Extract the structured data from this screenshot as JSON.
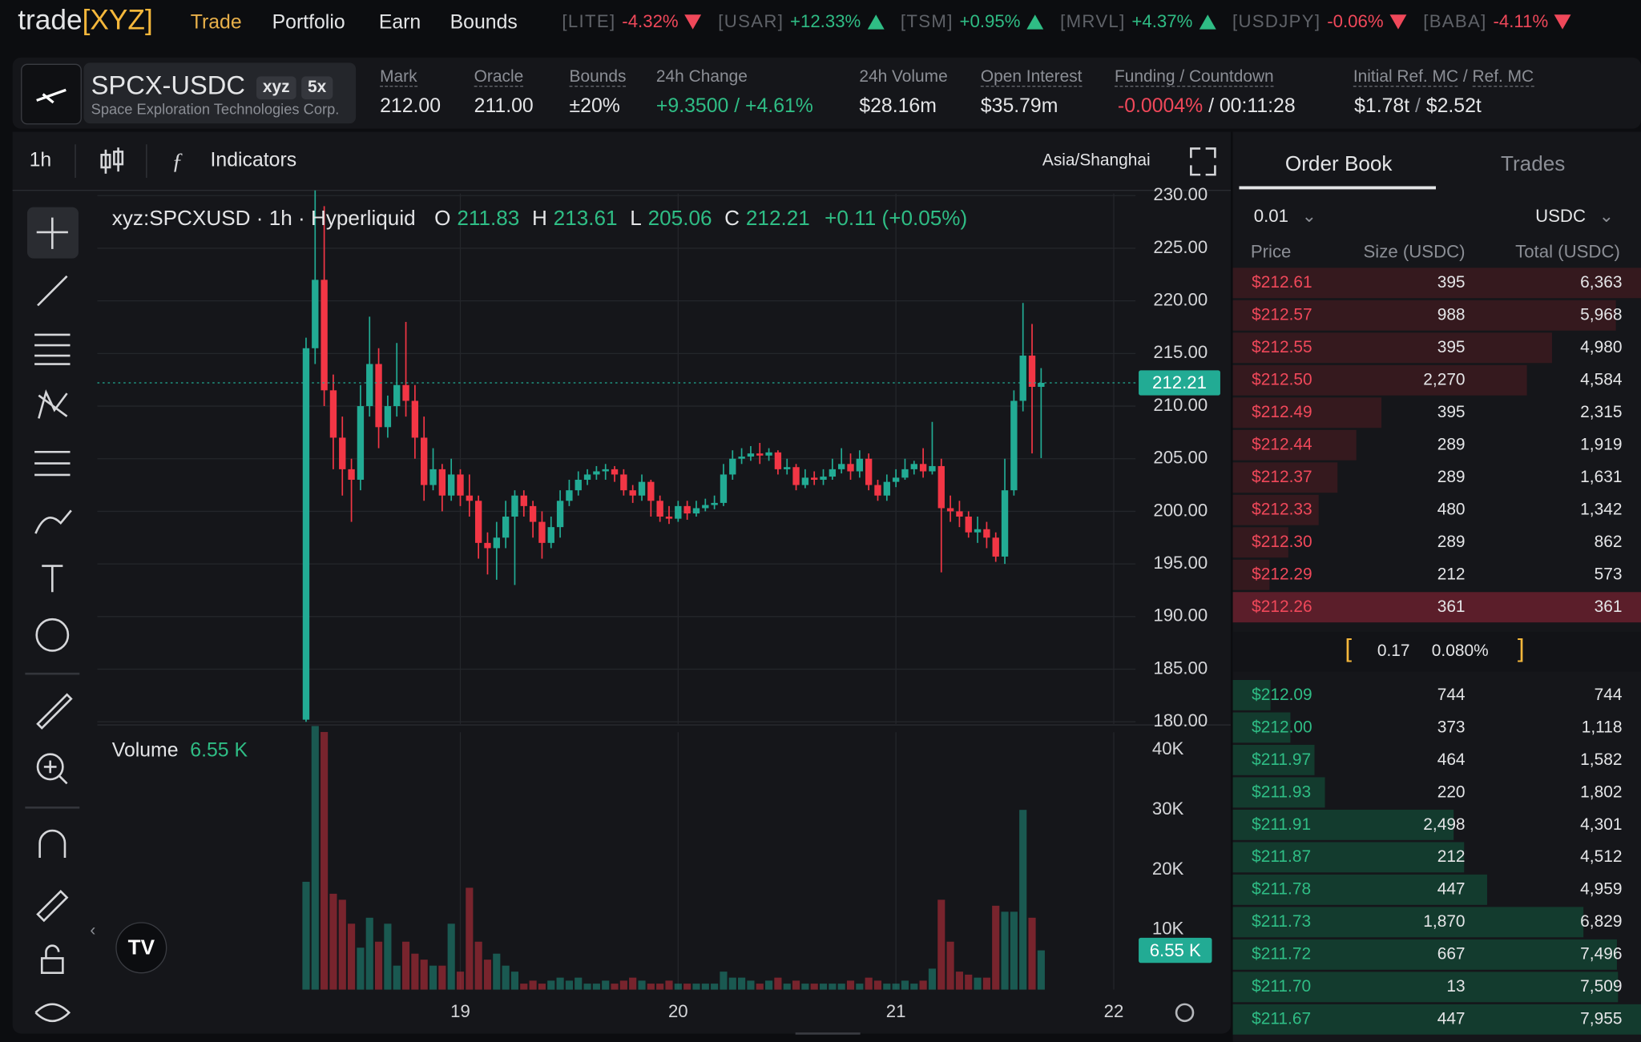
{
  "header": {
    "logo": "trade",
    "logo_accent": "[XYZ]",
    "nav": [
      "Trade",
      "Portfolio",
      "Earn",
      "Bounds"
    ],
    "tickers": [
      {
        "symbol": "[LITE]",
        "change": "-4.32%"
      },
      {
        "symbol": "[USAR]",
        "change": "+12.33%"
      },
      {
        "symbol": "[TSM]",
        "change": "+0.95%"
      },
      {
        "symbol": "[MRVL]",
        "change": "+4.37%"
      },
      {
        "symbol": "[USDJPY]",
        "change": "-0.06%"
      },
      {
        "symbol": "[BABA]",
        "change": "-4.11%"
      }
    ]
  },
  "market": {
    "pair": "SPCX-USDC",
    "tags": [
      "xyz",
      "5x"
    ],
    "company": "Space Exploration Technologies Corp.",
    "stats": [
      {
        "label": "Mark",
        "value": "212.00"
      },
      {
        "label": "Oracle",
        "value": "211.00"
      },
      {
        "label": "Bounds",
        "value": "±20%"
      },
      {
        "label": "24h Change",
        "value": "+9.3500 / +4.61%"
      },
      {
        "label": "24h Volume",
        "value": "$28.16m"
      },
      {
        "label": "Open Interest",
        "value": "$35.79m"
      }
    ],
    "funding": {
      "label": "Funding / Countdown",
      "rate": "-0.0004%",
      "separator": "/",
      "countdown": "00:11:28"
    },
    "refmc": {
      "label": "Initial Ref. MC",
      "label2": "Ref. MC",
      "separator": "/",
      "value": "$1.78t",
      "value2": "$2.52t"
    }
  },
  "toolbar": {
    "interval": "1h",
    "indicators": "Indicators",
    "timezone": "Asia/Shanghai"
  },
  "legend": {
    "symbol": "xyz:SPCXUSD · 1h · Hyperliquid",
    "ohlc_labels": [
      "O",
      "H",
      "L",
      "C"
    ],
    "change": "+0.11 (+0.05%)",
    "volume": "Volume"
  },
  "chart_data": {
    "type": "candlestick",
    "up_color": "#22ab94",
    "down_color": "#f23645",
    "grid": true,
    "open": [
      180.2,
      215.5,
      222,
      211.5,
      207,
      204,
      203,
      210,
      214,
      208,
      210,
      212,
      210.5,
      207,
      202.5,
      204,
      201.5,
      203.5,
      201.5,
      201,
      197,
      196.5,
      197.5,
      199.5,
      201.5,
      200.5,
      199,
      197,
      198.5,
      201,
      202,
      203,
      203.5,
      203.8,
      204,
      203.5,
      202,
      201.5,
      202.8,
      201,
      199.5,
      199.3,
      200.5,
      199.8,
      200.3,
      200.6,
      200.8,
      203.5,
      205,
      205.2,
      205.5,
      205.3,
      205.6,
      204,
      204.2,
      202.5,
      203.2,
      203,
      203.3,
      204,
      204.5,
      203.8,
      205,
      202.5,
      201.5,
      202.8,
      203.2,
      204,
      204.5,
      203.8,
      204.3,
      200.3,
      200,
      199.5,
      198,
      198.3,
      197.5,
      195.7,
      202,
      210.5,
      214.8,
      211.83
    ],
    "high": [
      216.5,
      230.5,
      229,
      213,
      209,
      205,
      212,
      218.5,
      215.5,
      211,
      216,
      218,
      212,
      209,
      206,
      204.5,
      205,
      204,
      203.5,
      201.5,
      198,
      199,
      201,
      202,
      202,
      201,
      200,
      199.5,
      202,
      203,
      203.8,
      204,
      204.3,
      204.5,
      204.3,
      204,
      202.5,
      203.5,
      203,
      201.5,
      200.5,
      201,
      201,
      201,
      201.2,
      201.5,
      204.5,
      205.8,
      206,
      206.2,
      206.5,
      206,
      205.8,
      205,
      204.5,
      204,
      203.8,
      204,
      205,
      206,
      205.5,
      205.8,
      205.5,
      203,
      203.5,
      204,
      205,
      204.8,
      206,
      208.5,
      205,
      201.5,
      201,
      200,
      199.5,
      199,
      198,
      205,
      211.5,
      219.8,
      217.8,
      213.61
    ],
    "low": [
      180,
      214,
      210,
      204,
      201.5,
      199,
      202,
      209,
      206,
      207,
      209,
      209,
      205,
      201,
      202,
      200,
      201,
      200.5,
      199.5,
      195.5,
      194,
      193.5,
      196.5,
      193,
      199.5,
      197.5,
      195.5,
      196.5,
      197.5,
      200.5,
      201.5,
      202.5,
      203,
      203,
      202.8,
      201.5,
      200.8,
      201,
      199.5,
      199,
      198.8,
      199,
      199.2,
      199.5,
      200,
      200.2,
      200.5,
      203,
      204.5,
      204.8,
      204.5,
      204.8,
      203.5,
      203.5,
      202,
      202.2,
      202.5,
      202.5,
      203,
      203.6,
      203,
      203.2,
      202,
      201,
      201,
      202.3,
      203,
      203.5,
      203.2,
      203.5,
      194.2,
      199,
      198.5,
      197.5,
      197,
      196.5,
      195.2,
      195,
      201.5,
      209.5,
      205.5,
      205.06
    ],
    "close": [
      215.5,
      222,
      211.5,
      207,
      204,
      203,
      210,
      214,
      208,
      210,
      212,
      210.5,
      207,
      202.5,
      204,
      201.5,
      203.5,
      201.5,
      201,
      197,
      196.5,
      197.5,
      199.5,
      201.5,
      200.5,
      199,
      197,
      198.5,
      201,
      202,
      203,
      203.5,
      203.8,
      204,
      203.5,
      202,
      201.5,
      202.8,
      201,
      199.5,
      199.3,
      200.5,
      199.8,
      200.3,
      200.6,
      200.8,
      203.5,
      205,
      205.2,
      205.5,
      205.3,
      205.6,
      204,
      204.2,
      202.5,
      203.2,
      203,
      203.3,
      204,
      204.5,
      203.8,
      205,
      202.5,
      201.5,
      202.8,
      203.2,
      204,
      204.5,
      203.8,
      204.3,
      200.3,
      200,
      199.5,
      198,
      198.3,
      197.5,
      195.7,
      202,
      210.5,
      214.8,
      211.83,
      212.21
    ],
    "volume": [
      18000,
      44000,
      43000,
      16000,
      15000,
      11000,
      7000,
      12000,
      8000,
      11000,
      4000,
      8000,
      6000,
      5000,
      4000,
      4000,
      11000,
      3000,
      17000,
      8000,
      5000,
      6000,
      4000,
      3000,
      1000,
      1500,
      1000,
      1500,
      2000,
      1500,
      2000,
      1000,
      1000,
      1500,
      1000,
      1500,
      2000,
      1500,
      1000,
      1000,
      1500,
      1000,
      1000,
      1000,
      1000,
      1000,
      3000,
      2000,
      2000,
      1500,
      1000,
      1500,
      2000,
      1000,
      1500,
      1000,
      1000,
      1000,
      1000,
      1000,
      1500,
      1000,
      2000,
      1500,
      1000,
      1000,
      1500,
      1000,
      1500,
      3500,
      15000,
      8000,
      3000,
      2500,
      2000,
      2000,
      14000,
      13000,
      13000,
      30000,
      12000,
      6550
    ],
    "last_volume_label": "6.55 K",
    "xlim": [
      -23,
      91.4
    ],
    "xticks": [
      {
        "value": 17,
        "label": "19"
      },
      {
        "value": 41,
        "label": "20"
      },
      {
        "value": 65,
        "label": "21"
      },
      {
        "value": 89,
        "label": "22"
      }
    ],
    "ylim": [
      179.8,
      230.2
    ],
    "yticks": [
      {
        "value": 230,
        "label": "230.00"
      },
      {
        "value": 225,
        "label": "225.00"
      },
      {
        "value": 220,
        "label": "220.00"
      },
      {
        "value": 215,
        "label": "215.00"
      },
      {
        "value": 210,
        "label": "210.00"
      },
      {
        "value": 205,
        "label": "205.00"
      },
      {
        "value": 200,
        "label": "200.00"
      },
      {
        "value": 195,
        "label": "195.00"
      },
      {
        "value": 190,
        "label": "190.00"
      },
      {
        "value": 185,
        "label": "185.00"
      },
      {
        "value": 180,
        "label": "180.00"
      }
    ],
    "volume_ylim": [
      0,
      44000
    ],
    "volume_ticks": [
      {
        "value": 10000,
        "label": "10K"
      },
      {
        "value": 20000,
        "label": "20K"
      },
      {
        "value": 30000,
        "label": "30K"
      },
      {
        "value": 40000,
        "label": "40K"
      }
    ]
  },
  "orderbook": {
    "tabs": [
      "Order Book",
      "Trades"
    ],
    "tick_size": "0.01",
    "unit": "USDC",
    "headers": [
      "Price",
      "Size (USDC)",
      "Total (USDC)"
    ],
    "asks": [
      [
        "$212.61",
        "395",
        "6,363"
      ],
      [
        "$212.57",
        "988",
        "5,968"
      ],
      [
        "$212.55",
        "395",
        "4,980"
      ],
      [
        "$212.50",
        "2,270",
        "4,584"
      ],
      [
        "$212.49",
        "395",
        "2,315"
      ],
      [
        "$212.44",
        "289",
        "1,919"
      ],
      [
        "$212.37",
        "289",
        "1,631"
      ],
      [
        "$212.33",
        "480",
        "1,342"
      ],
      [
        "$212.30",
        "289",
        "862"
      ],
      [
        "$212.29",
        "212",
        "573"
      ],
      [
        "$212.26",
        "361",
        "361"
      ]
    ],
    "spread": "0.17",
    "spread_pct": "0.080%",
    "bids": [
      [
        "$212.09",
        "744",
        "744"
      ],
      [
        "$212.00",
        "373",
        "1,118"
      ],
      [
        "$211.97",
        "464",
        "1,582"
      ],
      [
        "$211.93",
        "220",
        "1,802"
      ],
      [
        "$211.91",
        "2,498",
        "4,301"
      ],
      [
        "$211.87",
        "212",
        "4,512"
      ],
      [
        "$211.78",
        "447",
        "4,959"
      ],
      [
        "$211.73",
        "1,870",
        "6,829"
      ],
      [
        "$211.72",
        "667",
        "7,496"
      ],
      [
        "$211.70",
        "13",
        "7,509"
      ],
      [
        "$211.67",
        "447",
        "7,955"
      ]
    ]
  }
}
